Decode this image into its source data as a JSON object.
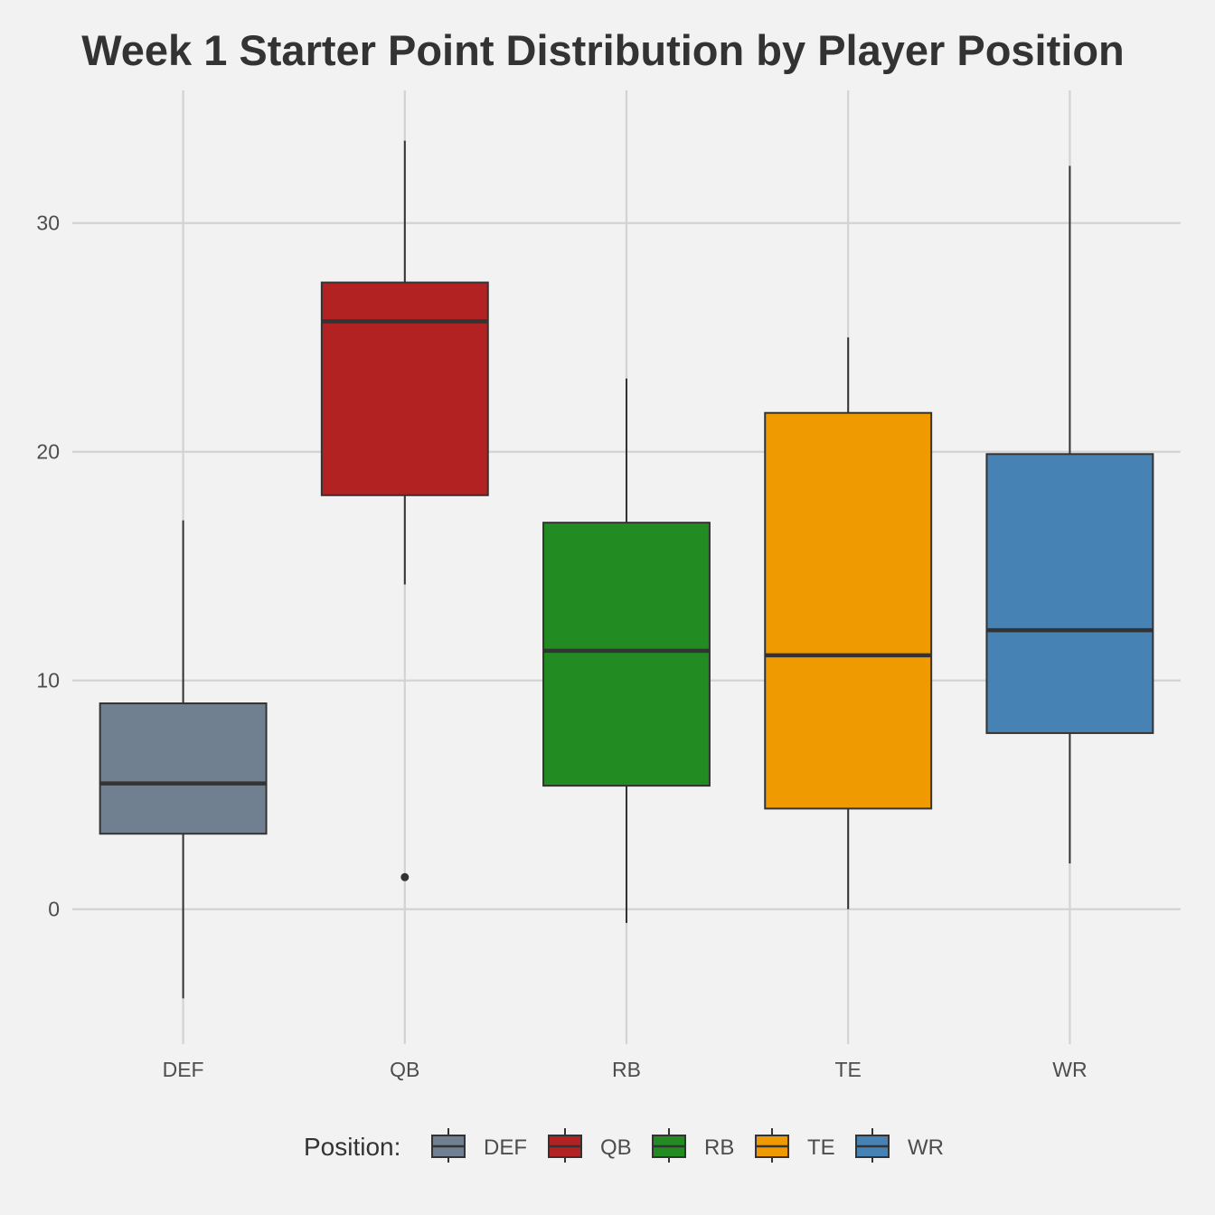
{
  "chart_data": {
    "type": "boxplot",
    "title": "Week 1 Starter Point Distribution by Player Position",
    "xlabel": "",
    "ylabel": "",
    "ylim": [
      -5.9,
      35.8
    ],
    "y_ticks": [
      0,
      10,
      20,
      30
    ],
    "grid": true,
    "legend": {
      "title": "Position:",
      "placement": "bottom",
      "entries": [
        "DEF",
        "QB",
        "RB",
        "TE",
        "WR"
      ]
    },
    "categories": [
      "DEF",
      "QB",
      "RB",
      "TE",
      "WR"
    ],
    "series": [
      {
        "name": "DEF",
        "color": "#708090",
        "whisker_low": -3.9,
        "q1": 3.3,
        "median": 5.5,
        "q3": 9.0,
        "whisker_high": 17.0,
        "outliers": []
      },
      {
        "name": "QB",
        "color": "#b22222",
        "whisker_low": 14.2,
        "q1": 18.1,
        "median": 25.7,
        "q3": 27.4,
        "whisker_high": 33.6,
        "outliers": [
          1.4
        ]
      },
      {
        "name": "RB",
        "color": "#228b22",
        "whisker_low": -0.6,
        "q1": 5.4,
        "median": 11.3,
        "q3": 16.9,
        "whisker_high": 23.2,
        "outliers": []
      },
      {
        "name": "TE",
        "color": "#ee9a00",
        "whisker_low": 0.0,
        "q1": 4.4,
        "median": 11.1,
        "q3": 21.7,
        "whisker_high": 25.0,
        "outliers": []
      },
      {
        "name": "WR",
        "color": "#4682b4",
        "whisker_low": 2.0,
        "q1": 7.7,
        "median": 12.2,
        "q3": 19.9,
        "whisker_high": 32.5,
        "outliers": []
      }
    ]
  }
}
